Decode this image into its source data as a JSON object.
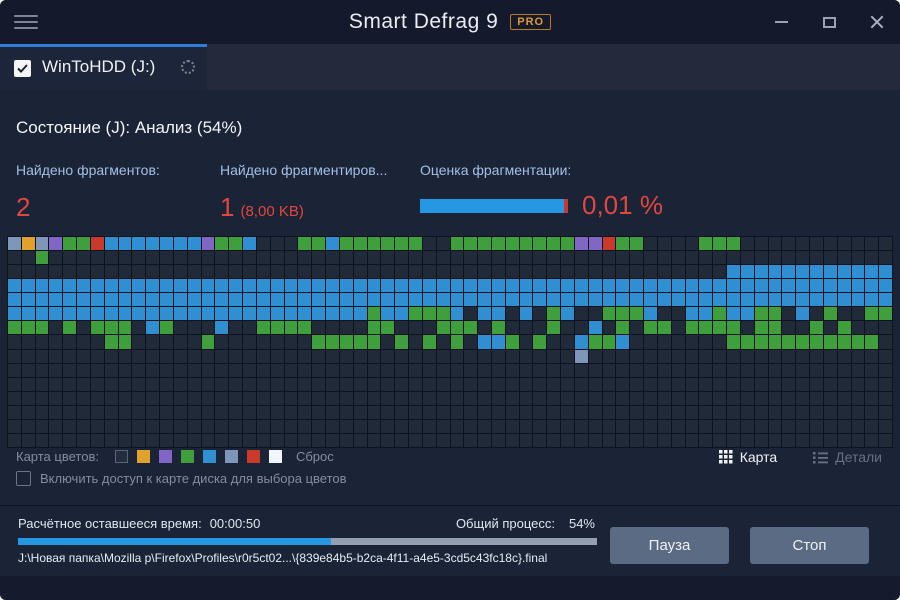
{
  "window": {
    "title": "Smart Defrag 9",
    "badge": "PRO"
  },
  "tab": {
    "label": "WinToHDD (J:)"
  },
  "status": {
    "text": "Состояние (J): Анализ (54%)"
  },
  "stats": {
    "fragments": {
      "label": "Найдено фрагментов:",
      "value": "2"
    },
    "fragmented": {
      "label": "Найдено фрагментиров...",
      "value": "1",
      "detail": "(8,00 KB)"
    },
    "estimate": {
      "label": "Оценка фрагментации:",
      "value": "0,01 %",
      "bar_fill_pct": 97,
      "bar_tip_pct": 3
    }
  },
  "map": {
    "columns": 64,
    "palette": {
      ".": "#202a39",
      "B": "#2f8fd0",
      "G": "#3f9f3d",
      "g": "#7e96b8",
      "O": "#e0a22b",
      "P": "#8266c6",
      "R": "#c93a2b",
      "W": "#f2f5f9"
    },
    "rows": [
      "gOgPGGRBBBBBBBPGGB...GGBGGGGGG..GGGGGGGGGPPRGG....GGG...........",
      "..G.............................................................",
      "....................................................BBBBBBBBBBBB",
      "BBBBBBBBBBBBBBBBBBBBBBBBBBBBBBBBBBBBBBBBBBBBBBBBBBBBBBBBBBBBBBBB",
      "BBBBBBBBBBBBBBBBBBBBBBBBBBBBBBBBBBBBBBBBBBBBBBBBBBBBBBBBBBBBBBBB",
      "BBBBBBBBBBBBBBBBBBBBBBBBBBGBBGGGB.BB.B.GB..GGGB..BBGBBGG.B.G..GG",
      "GGG.G.GGG.BG...B..GGGG....GG...GGG.G...G..B.G.GG.GGGG.GG..G.G...",
      ".......GG.....G.......GGGGG.G.G.G.BBG.G..BGGB.......GGGGGGGGGGG.",
      ".........................................g......................",
      "................................................................",
      "................................................................",
      "................................................................",
      "................................................................",
      "................................................................",
      "................................................................"
    ]
  },
  "legend": {
    "label": "Карта цветов:",
    "swatches": [
      "#232d3e",
      "#e0a22b",
      "#8266c6",
      "#3f9f3d",
      "#2f8fd0",
      "#7e96b8",
      "#c93a2b",
      "#f2f5f9"
    ],
    "reset": "Сброс",
    "checkbox_label": "Включить доступ к карте диска для выбора цветов",
    "view_map": "Карта",
    "view_details": "Детали"
  },
  "footer": {
    "time_label": "Расчётное оставшееся время:",
    "time_value": "00:00:50",
    "progress_label": "Общий процесс:",
    "progress_value": "54%",
    "progress_pct": 54,
    "path": "J:\\Новая папка\\Mozilla p\\Firefox\\Profiles\\r0r5ct02...\\{839e84b5-b2ca-4f11-a4e5-3cd5c43fc18c}.final",
    "pause": "Пауза",
    "stop": "Стоп"
  },
  "colors": {
    "accent_blue": "#2597e3",
    "alert_red": "#e0473f",
    "tab_accent": "#2e7ed8"
  }
}
